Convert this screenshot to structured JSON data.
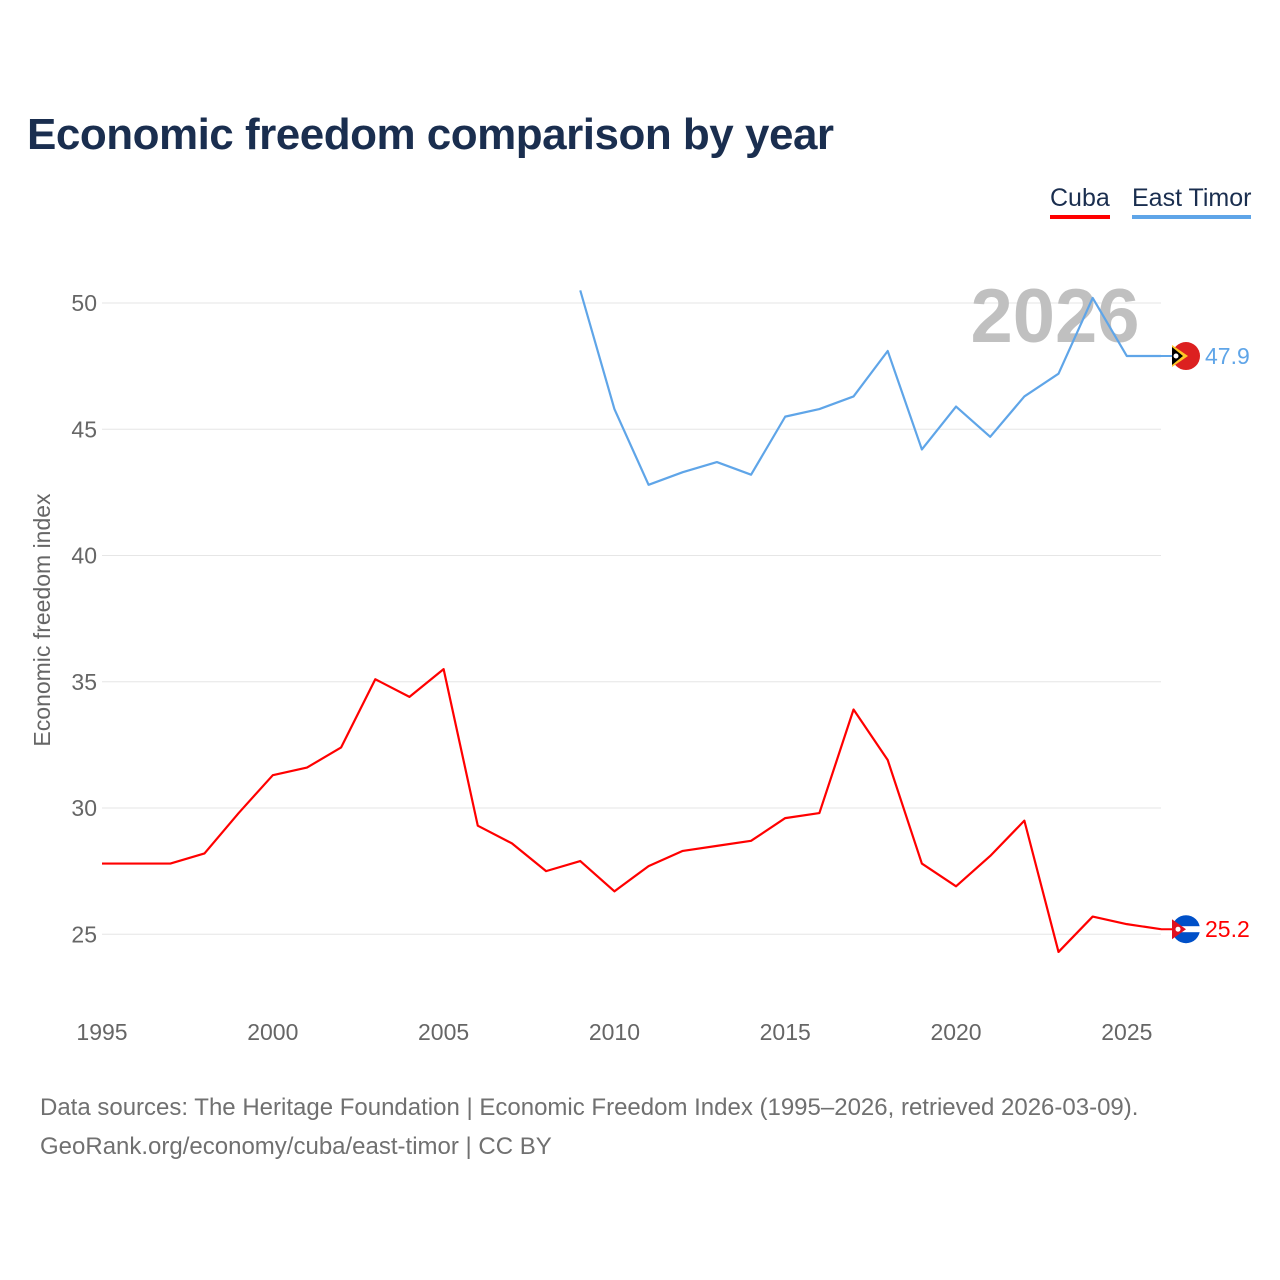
{
  "chart_data": {
    "type": "line",
    "title": "Economic freedom comparison by year",
    "xlabel": "",
    "ylabel": "Economic freedom index",
    "xlim": [
      1995,
      2026
    ],
    "ylim": [
      23,
      52
    ],
    "x_ticks": [
      1995,
      2000,
      2005,
      2010,
      2015,
      2020,
      2025
    ],
    "y_ticks": [
      25,
      30,
      35,
      40,
      45,
      50
    ],
    "grid": true,
    "legend_placement": "top-right",
    "watermark_year": "2026",
    "series": [
      {
        "name": "Cuba",
        "color": "#ff0000",
        "end_label": "25.2",
        "x": [
          1995,
          1996,
          1997,
          1998,
          1999,
          2000,
          2001,
          2002,
          2003,
          2004,
          2005,
          2006,
          2007,
          2008,
          2009,
          2010,
          2011,
          2012,
          2013,
          2014,
          2015,
          2016,
          2017,
          2018,
          2019,
          2020,
          2021,
          2022,
          2023,
          2024,
          2025,
          2026
        ],
        "values": [
          27.8,
          27.8,
          27.8,
          28.2,
          29.8,
          31.3,
          31.6,
          32.4,
          35.1,
          34.4,
          35.5,
          29.3,
          28.6,
          27.5,
          27.9,
          26.7,
          27.7,
          28.3,
          28.5,
          28.7,
          29.6,
          29.8,
          33.9,
          31.9,
          27.8,
          26.9,
          28.1,
          29.5,
          24.3,
          25.7,
          25.4,
          25.2
        ]
      },
      {
        "name": "East Timor",
        "color": "#5fa5e8",
        "end_label": "47.9",
        "x": [
          2009,
          2010,
          2011,
          2012,
          2013,
          2014,
          2015,
          2016,
          2017,
          2018,
          2019,
          2020,
          2021,
          2022,
          2023,
          2024,
          2025,
          2026
        ],
        "values": [
          50.5,
          45.8,
          42.8,
          43.3,
          43.7,
          43.2,
          45.5,
          45.8,
          46.3,
          48.1,
          44.2,
          45.9,
          44.7,
          46.3,
          47.2,
          50.2,
          47.9,
          47.9
        ]
      }
    ]
  },
  "footer": {
    "line1": "Data sources: The Heritage Foundation | Economic Freedom Index (1995–2026, retrieved 2026-03-09).",
    "line2": "GeoRank.org/economy/cuba/east-timor | CC BY"
  }
}
